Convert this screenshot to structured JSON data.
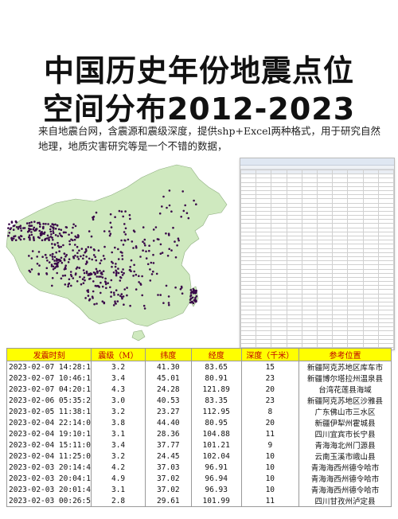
{
  "title": {
    "line1": "中国历史年份地震点位",
    "line2": "空间分布2012-2023"
  },
  "description": "来自地震台网，含震源和震级深度，提供shp+Excel两种格式，用于研究自然地理，地质灾害研究等是一个不错的数据，",
  "colors": {
    "header_bg": "#ffff00",
    "header_text": "#c00000",
    "land_fill": "#cfe9bf",
    "point_color": "#3a0a4a"
  },
  "table": {
    "headers": [
      "发震时刻",
      "震级（M）",
      "纬度",
      "经度",
      "深度（千米）",
      "参考位置"
    ],
    "rows": [
      [
        "2023-02-07 14:28:15",
        "3.2",
        "41.30",
        "83.65",
        "15",
        "新疆阿克苏地区库车市"
      ],
      [
        "2023-02-07 10:46:17",
        "3.4",
        "45.01",
        "80.91",
        "23",
        "新疆博尔塔拉州温泉县"
      ],
      [
        "2023-02-07 04:20:16",
        "4.3",
        "24.28",
        "121.89",
        "20",
        "台湾花莲县海域"
      ],
      [
        "2023-02-06 05:35:27",
        "3.0",
        "40.53",
        "83.35",
        "23",
        "新疆阿克苏地区沙雅县"
      ],
      [
        "2023-02-05 11:38:14",
        "3.2",
        "23.27",
        "112.95",
        "8",
        "广东佛山市三水区"
      ],
      [
        "2023-02-04 22:14:05",
        "3.8",
        "44.40",
        "80.95",
        "20",
        "新疆伊犁州霍城县"
      ],
      [
        "2023-02-04 19:10:18",
        "3.1",
        "28.36",
        "104.88",
        "11",
        "四川宜宾市长宁县"
      ],
      [
        "2023-02-04 15:11:08",
        "3.4",
        "37.77",
        "101.21",
        "9",
        "青海海北州门源县"
      ],
      [
        "2023-02-04 11:25:00",
        "3.2",
        "24.45",
        "102.04",
        "10",
        "云南玉溪市峨山县"
      ],
      [
        "2023-02-03 20:14:40",
        "4.2",
        "37.03",
        "96.91",
        "10",
        "青海海西州德令哈市"
      ],
      [
        "2023-02-03 20:04:19",
        "4.9",
        "37.02",
        "96.94",
        "10",
        "青海海西州德令哈市"
      ],
      [
        "2023-02-03 20:01:48",
        "3.1",
        "37.02",
        "96.93",
        "10",
        "青海海西州德令哈市"
      ],
      [
        "2023-02-03 00:26:52",
        "2.8",
        "29.61",
        "101.99",
        "11",
        "四川甘孜州泸定县"
      ]
    ]
  }
}
